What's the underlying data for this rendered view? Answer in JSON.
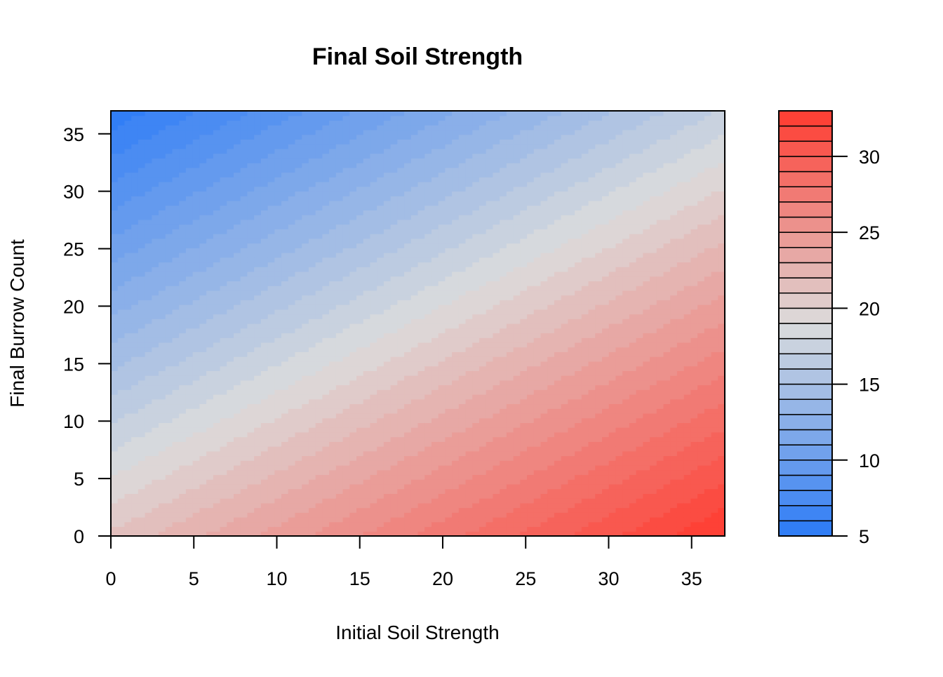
{
  "chart_data": {
    "type": "heatmap",
    "subtype": "filled-contour",
    "title": "Final Soil Strength",
    "xlabel": "Initial Soil Strength",
    "ylabel": "Final Burrow Count",
    "xlim": [
      0,
      37
    ],
    "ylim": [
      0,
      37
    ],
    "x_ticks": [
      0,
      5,
      10,
      15,
      20,
      25,
      30,
      35
    ],
    "y_ticks": [
      0,
      5,
      10,
      15,
      20,
      25,
      30,
      35
    ],
    "legend": {
      "position": "right",
      "range": [
        5,
        33
      ],
      "levels": [
        5,
        6,
        7,
        8,
        9,
        10,
        11,
        12,
        13,
        14,
        15,
        16,
        17,
        18,
        19,
        20,
        21,
        22,
        23,
        24,
        25,
        26,
        27,
        28,
        29,
        30,
        31,
        32,
        33
      ],
      "ticks": [
        5,
        10,
        15,
        20,
        25,
        30
      ]
    },
    "surface": {
      "z_at_x0_y0": 21.2,
      "dz_dx": 0.32,
      "dz_dy": -0.43
    },
    "colors": {
      "low": "#2B7BF7",
      "mid": "#DCDCDC",
      "high": "#FF3B30",
      "mid_value": 19
    },
    "grid": false
  }
}
